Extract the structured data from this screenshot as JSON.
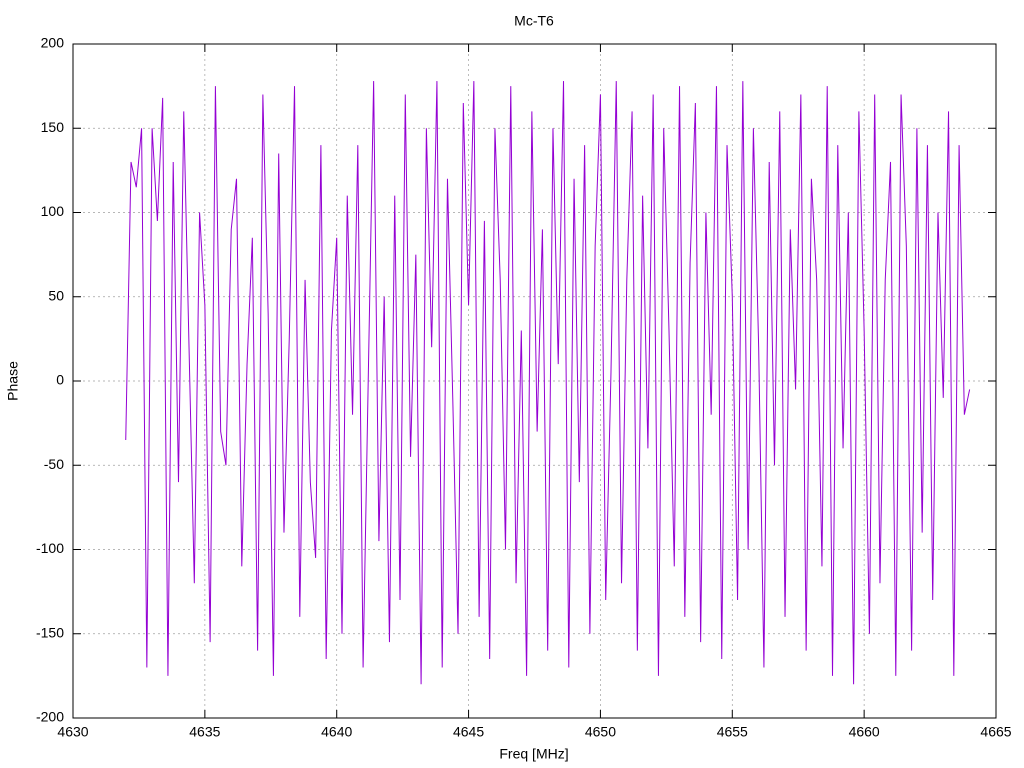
{
  "chart_data": {
    "type": "line",
    "title": "Mc-T6",
    "xlabel": "Freq [MHz]",
    "ylabel": "Phase",
    "color": "#9400d3",
    "grid": true,
    "xlim": [
      4630,
      4665
    ],
    "xticks": [
      4630,
      4635,
      4640,
      4645,
      4650,
      4655,
      4660,
      4665
    ],
    "ylim": [
      -200,
      200
    ],
    "yticks": [
      -200,
      -150,
      -100,
      -50,
      0,
      50,
      100,
      150,
      200
    ],
    "x": [
      4632.0,
      4632.2,
      4632.4,
      4632.6,
      4632.8,
      4633.0,
      4633.2,
      4633.4,
      4633.6,
      4633.8,
      4634.0,
      4634.2,
      4634.4,
      4634.6,
      4634.8,
      4635.0,
      4635.2,
      4635.4,
      4635.6,
      4635.8,
      4636.0,
      4636.2,
      4636.4,
      4636.6,
      4636.8,
      4637.0,
      4637.2,
      4637.4,
      4637.6,
      4637.8,
      4638.0,
      4638.2,
      4638.4,
      4638.6,
      4638.8,
      4639.0,
      4639.2,
      4639.4,
      4639.6,
      4639.8,
      4640.0,
      4640.2,
      4640.4,
      4640.6,
      4640.8,
      4641.0,
      4641.2,
      4641.4,
      4641.6,
      4641.8,
      4642.0,
      4642.2,
      4642.4,
      4642.6,
      4642.8,
      4643.0,
      4643.2,
      4643.4,
      4643.6,
      4643.8,
      4644.0,
      4644.2,
      4644.4,
      4644.6,
      4644.8,
      4645.0,
      4645.2,
      4645.4,
      4645.6,
      4645.8,
      4646.0,
      4646.2,
      4646.4,
      4646.6,
      4646.8,
      4647.0,
      4647.2,
      4647.4,
      4647.6,
      4647.8,
      4648.0,
      4648.2,
      4648.4,
      4648.6,
      4648.8,
      4649.0,
      4649.2,
      4649.4,
      4649.6,
      4649.8,
      4650.0,
      4650.2,
      4650.4,
      4650.6,
      4650.8,
      4651.0,
      4651.2,
      4651.4,
      4651.6,
      4651.8,
      4652.0,
      4652.2,
      4652.4,
      4652.6,
      4652.8,
      4653.0,
      4653.2,
      4653.4,
      4653.6,
      4653.8,
      4654.0,
      4654.2,
      4654.4,
      4654.6,
      4654.8,
      4655.0,
      4655.2,
      4655.4,
      4655.6,
      4655.8,
      4656.0,
      4656.2,
      4656.4,
      4656.6,
      4656.8,
      4657.0,
      4657.2,
      4657.4,
      4657.6,
      4657.8,
      4658.0,
      4658.2,
      4658.4,
      4658.6,
      4658.8,
      4659.0,
      4659.2,
      4659.4,
      4659.6,
      4659.8,
      4660.0,
      4660.2,
      4660.4,
      4660.6,
      4660.8,
      4661.0,
      4661.2,
      4661.4,
      4661.6,
      4661.8,
      4662.0,
      4662.2,
      4662.4,
      4662.6,
      4662.8,
      4663.0,
      4663.2,
      4663.4,
      4663.6,
      4663.8,
      4664.0
    ],
    "values": [
      -35,
      130,
      115,
      150,
      -170,
      150,
      95,
      168,
      -175,
      130,
      -60,
      160,
      20,
      -120,
      100,
      45,
      -155,
      175,
      -30,
      -50,
      90,
      120,
      -110,
      10,
      85,
      -160,
      170,
      40,
      -175,
      135,
      -90,
      25,
      175,
      -140,
      60,
      -60,
      -105,
      140,
      -165,
      30,
      85,
      -150,
      110,
      -20,
      140,
      -170,
      5,
      178,
      -95,
      50,
      -155,
      110,
      -130,
      170,
      -45,
      75,
      -180,
      150,
      20,
      178,
      -170,
      120,
      -10,
      -150,
      165,
      45,
      178,
      -140,
      95,
      -165,
      150,
      60,
      -100,
      175,
      -120,
      30,
      -175,
      160,
      -30,
      90,
      -160,
      150,
      10,
      178,
      -170,
      120,
      -60,
      140,
      -150,
      80,
      170,
      -130,
      5,
      178,
      -120,
      60,
      160,
      -160,
      110,
      -40,
      170,
      -175,
      150,
      30,
      -110,
      175,
      -140,
      70,
      165,
      -155,
      100,
      -20,
      175,
      -165,
      140,
      50,
      -130,
      178,
      -100,
      150,
      20,
      -170,
      130,
      -50,
      160,
      -140,
      90,
      -5,
      170,
      -160,
      120,
      60,
      -110,
      175,
      -175,
      140,
      -40,
      100,
      -180,
      160,
      30,
      -150,
      170,
      -120,
      60,
      130,
      -175,
      170,
      80,
      -160,
      150,
      -90,
      140,
      -130,
      100,
      -10,
      160,
      -175,
      140,
      -20,
      -5
    ]
  }
}
